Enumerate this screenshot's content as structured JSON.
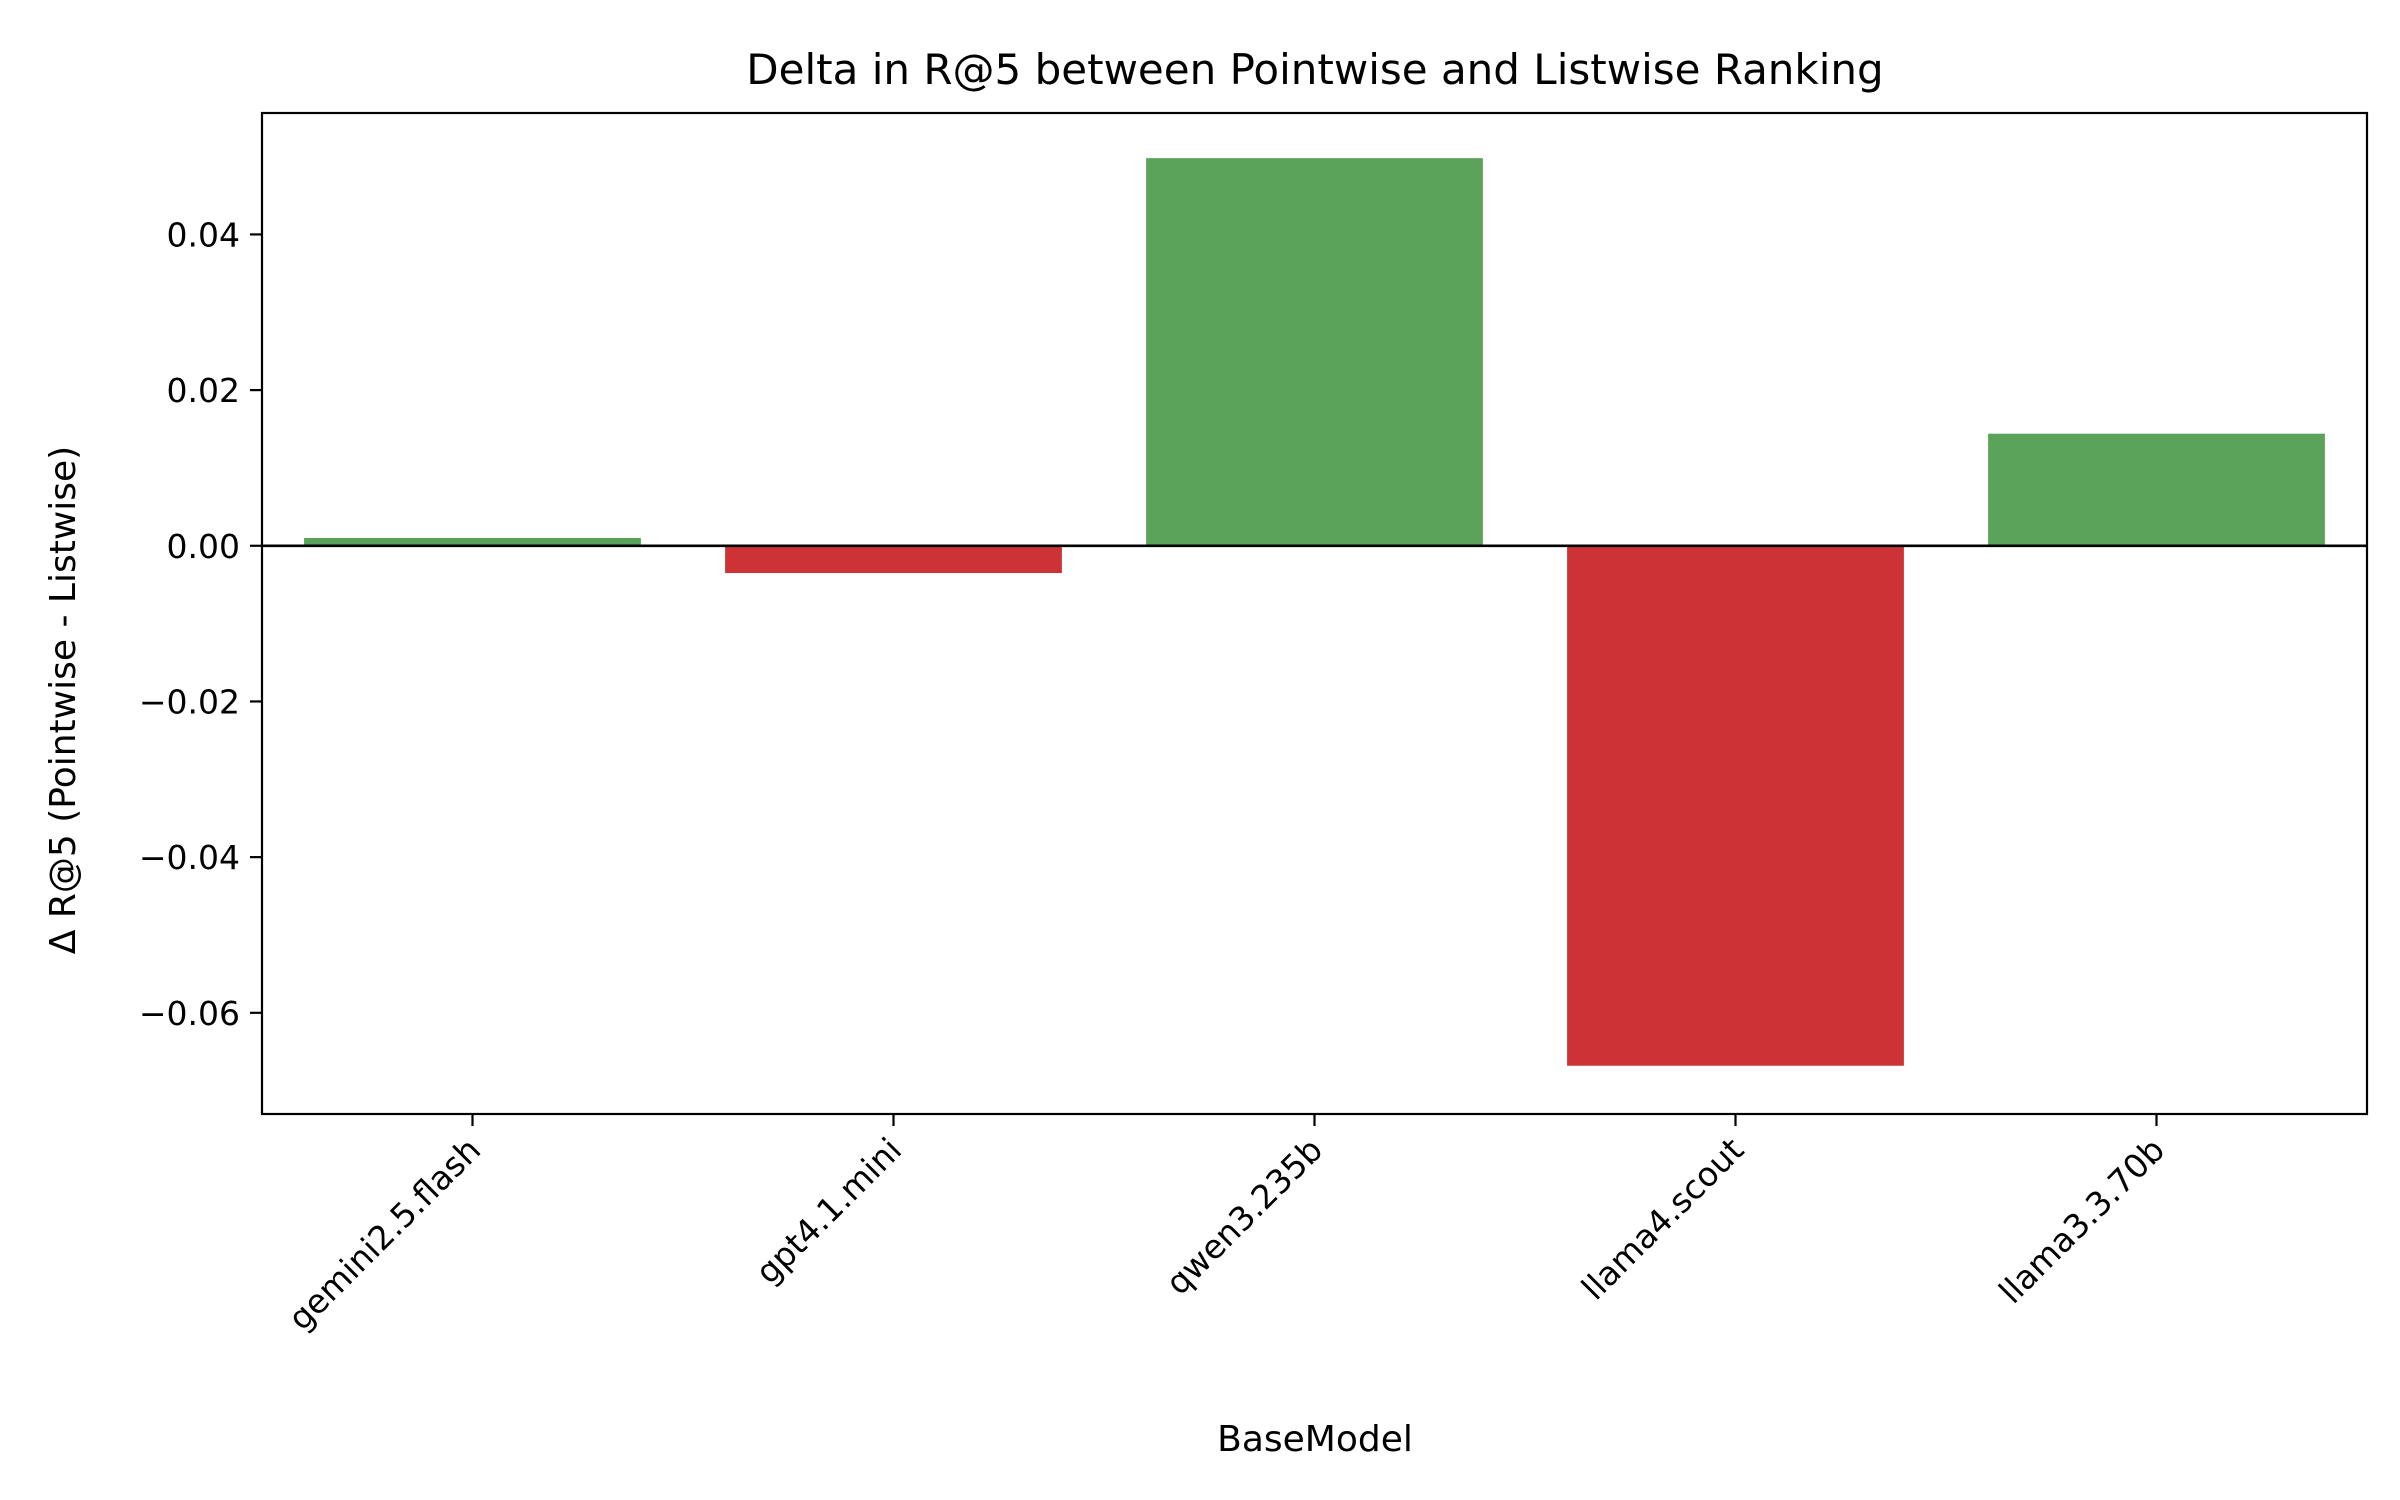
{
  "chart_data": {
    "type": "bar",
    "title": "Delta in R@5 between Pointwise and Listwise Ranking",
    "xlabel": "BaseModel",
    "ylabel": "Δ R@5 (Pointwise - Listwise)",
    "categories": [
      "gemini2.5.flash",
      "gpt4.1.mini",
      "qwen3.235b",
      "llama4.scout",
      "llama3.3.70b"
    ],
    "values": [
      0.001,
      -0.0035,
      0.0498,
      -0.0668,
      0.0144
    ],
    "ylim": [
      -0.073,
      0.0556
    ],
    "yticks": [
      0.04,
      0.02,
      0.0,
      -0.02,
      -0.04,
      -0.06
    ],
    "ytick_labels": [
      "0.04",
      "0.02",
      "0.00",
      "−0.02",
      "−0.04",
      "−0.06"
    ],
    "grid": false,
    "legend": "none",
    "colors": {
      "positive": "#5ba35a",
      "negative": "#cd3336",
      "zero_line": "#000000"
    }
  }
}
